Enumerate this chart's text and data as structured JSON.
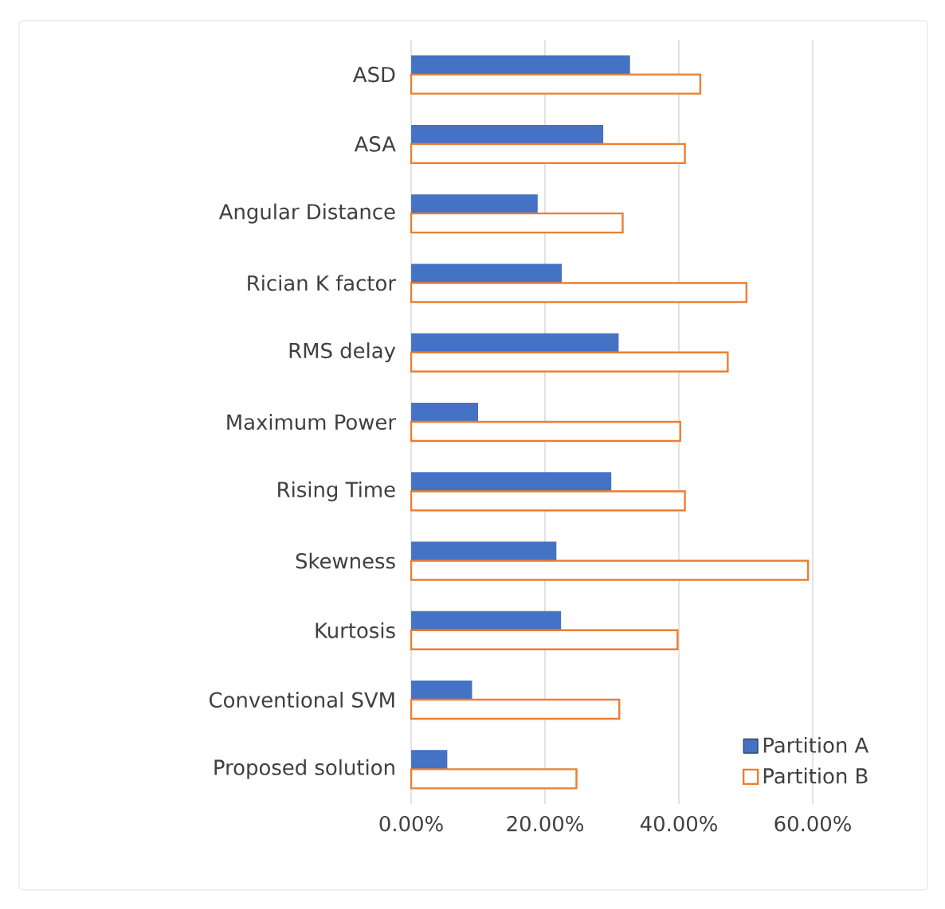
{
  "chart_data": {
    "type": "bar",
    "orientation": "horizontal",
    "categories": [
      "ASD",
      "ASA",
      "Angular Distance",
      "Rician K factor",
      "RMS delay",
      "Maximum Power",
      "Rising Time",
      "Skewness",
      "Kurtosis",
      "Conventional SVM",
      "Proposed solution"
    ],
    "series": [
      {
        "name": "Partition A",
        "color": "#4472c4",
        "values": [
          32.7,
          28.7,
          18.9,
          22.5,
          31.0,
          10.0,
          29.9,
          21.7,
          22.4,
          9.1,
          5.4
        ]
      },
      {
        "name": "Partition B",
        "color": "#ed7d31",
        "values": [
          43.2,
          40.9,
          31.6,
          50.1,
          47.3,
          40.2,
          40.9,
          59.3,
          39.8,
          31.1,
          24.7
        ]
      }
    ],
    "xlim": [
      0,
      60
    ],
    "xticks": [
      {
        "value": 0,
        "label": "0.00%"
      },
      {
        "value": 20,
        "label": "20.00%"
      },
      {
        "value": 40,
        "label": "40.00%"
      },
      {
        "value": 60,
        "label": "60.00%"
      }
    ],
    "grid": "x",
    "legend": "bottom right"
  }
}
